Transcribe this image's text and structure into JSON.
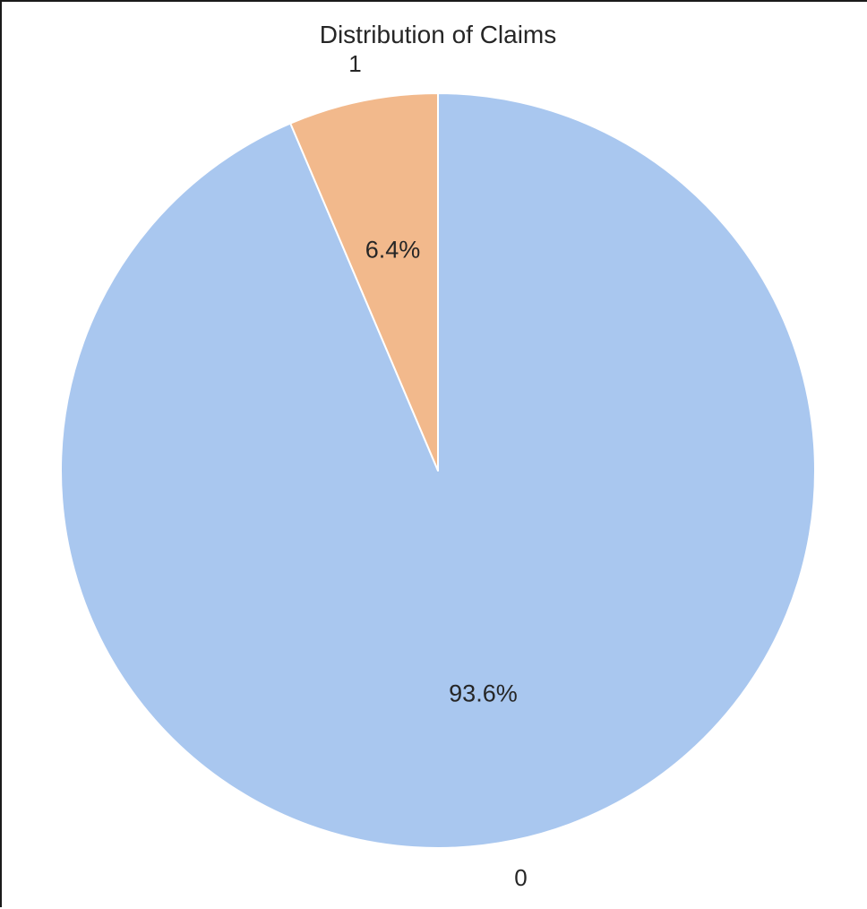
{
  "chart_data": {
    "type": "pie",
    "title": "Distribution of Claims",
    "categories": [
      "0",
      "1"
    ],
    "values": [
      93.6,
      6.4
    ],
    "value_labels": [
      "93.6%",
      "6.4%"
    ],
    "colors": [
      "#a9c7ef",
      "#f2b98c"
    ],
    "edge_color": "#ffffff",
    "start_angle_deg": 90,
    "direction": "clockwise",
    "legend": "none"
  }
}
